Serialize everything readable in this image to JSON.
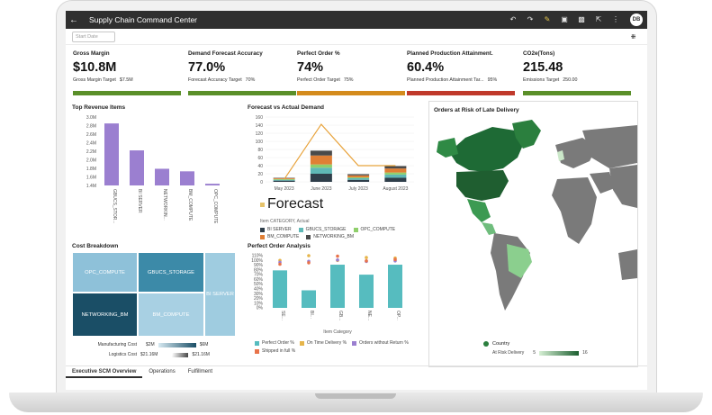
{
  "app": {
    "title": "Supply Chain Command Center",
    "user_initials": "DB"
  },
  "filter": {
    "date_placeholder": "Start Date"
  },
  "kpis": [
    {
      "label": "Gross Margin",
      "value": "$10.8M",
      "target_label": "Gross Margin Target",
      "target_value": "$7.5M",
      "status_color": "#5a8f29"
    },
    {
      "label": "Demand Forecast Accuracy",
      "value": "77.0%",
      "target_label": "Forecast Accuracy Target",
      "target_value": "70%",
      "status_color": "#5a8f29"
    },
    {
      "label": "Perfect Order %",
      "value": "74%",
      "target_label": "Perfect Order Target",
      "target_value": "75%",
      "status_color": "#d48b1c"
    },
    {
      "label": "Planned Production Attainment.",
      "value": "60.4%",
      "target_label": "Planned Production Attainment Tar...",
      "target_value": "95%",
      "status_color": "#c0392b"
    },
    {
      "label": "CO2e(Tons)",
      "value": "215.48",
      "target_label": "Emissions Target",
      "target_value": "250.00",
      "status_color": "#5a8f29"
    }
  ],
  "top_revenue": {
    "title": "Top Revenue Items",
    "chart_data": {
      "type": "bar",
      "categories": [
        "GBUCS_STOR...",
        "BI SERVER",
        "NETWORKIN...",
        "BM_COMPUTE",
        "OPC_COMPUTE"
      ],
      "values": [
        2.85,
        2.22,
        1.79,
        1.73,
        1.44
      ],
      "ylim": [
        1.4,
        3.0
      ],
      "yticks": [
        "1.4M",
        "1.6M",
        "1.8M",
        "2.0M",
        "2.2M",
        "2.4M",
        "2.6M",
        "2.8M",
        "3.0M"
      ],
      "color": "#9b7fd0"
    }
  },
  "forecast": {
    "title": "Forecast vs Actual Demand",
    "chart_data": {
      "type": "bar",
      "categories": [
        "May 2023",
        "June 2023",
        "July 2023",
        "August 2023"
      ],
      "yticks": [
        "0",
        "20",
        "40",
        "60",
        "80",
        "100",
        "120",
        "140",
        "160"
      ],
      "ylim": [
        0,
        160
      ],
      "series": [
        {
          "name": "BI SERVER",
          "color": "#2f3e4a",
          "values": [
            3,
            20,
            5,
            10
          ]
        },
        {
          "name": "GBUCS_STORAGE",
          "color": "#5fb8b6",
          "values": [
            2,
            15,
            4,
            8
          ]
        },
        {
          "name": "OPC_COMPUTE",
          "color": "#8fcf6b",
          "values": [
            2,
            8,
            2,
            5
          ]
        },
        {
          "name": "BM_COMPUTE",
          "color": "#e07f35",
          "values": [
            2,
            22,
            5,
            10
          ]
        },
        {
          "name": "NETWORKING_BM",
          "color": "#4a4a4a",
          "values": [
            1,
            12,
            3,
            6
          ]
        }
      ],
      "forecast_line": {
        "name": "Forecast",
        "color": "#e8a33c",
        "values": [
          6,
          142,
          40,
          40
        ]
      },
      "forecast_legend": "Forecast",
      "actual_legend_title": "Item CATEGORY, Actual"
    }
  },
  "map": {
    "title": "Orders at Risk of Late Delivery",
    "legend_label": "Country",
    "scale_label": "At Risk Delivery",
    "scale_min": "5",
    "scale_max": "16"
  },
  "cost_breakdown": {
    "title": "Cost Breakdown",
    "chart_data": {
      "type": "heatmap",
      "cells": [
        {
          "label": "OPC_COMPUTE",
          "color": "#8ec1d9"
        },
        {
          "label": "GBUCS_STORAGE",
          "color": "#3c8aa8"
        },
        {
          "label": "BI SERVER",
          "color": "#9fcce0"
        },
        {
          "label": "NETWORKING_BM",
          "color": "#1a4e66"
        },
        {
          "label": "BM_COMPUTE",
          "color": "#a8d0e3"
        }
      ]
    },
    "legend": [
      {
        "label": "Manufacturing Cost",
        "min": "$2M",
        "max": "$6M"
      },
      {
        "label": "Logistics Cost",
        "min": "$21.16M",
        "max": "$21.16M"
      }
    ]
  },
  "perfect_order": {
    "title": "Perfect Order Analysis",
    "chart_data": {
      "type": "bar",
      "categories": [
        "SE...",
        "BI...",
        "GB...",
        "NE...",
        "OP..."
      ],
      "xlabel": "Item Category",
      "yticks": [
        "0%",
        "10%",
        "20%",
        "30%",
        "40%",
        "50%",
        "60%",
        "70%",
        "80%",
        "90%",
        "100%",
        "110%"
      ],
      "ylim": [
        0,
        110
      ],
      "series": [
        {
          "name": "Perfect Order %",
          "color": "#56bcbf",
          "values": [
            79,
            37,
            91,
            70,
            91
          ]
        },
        {
          "name": "On Time Delivery %",
          "color": "#e6b54a",
          "values": [
            100,
            110,
            100,
            106,
            105
          ]
        },
        {
          "name": "Orders without Return %",
          "color": "#9b7fd0",
          "values": [
            96,
            98,
            101,
            98,
            99
          ]
        },
        {
          "name": "Shipped in full %",
          "color": "#e8734a",
          "values": [
            92,
            95,
            109,
            99,
            102
          ]
        }
      ]
    }
  },
  "tabs": [
    "Executive SCM Overview",
    "Operations",
    "Fulfillment"
  ]
}
